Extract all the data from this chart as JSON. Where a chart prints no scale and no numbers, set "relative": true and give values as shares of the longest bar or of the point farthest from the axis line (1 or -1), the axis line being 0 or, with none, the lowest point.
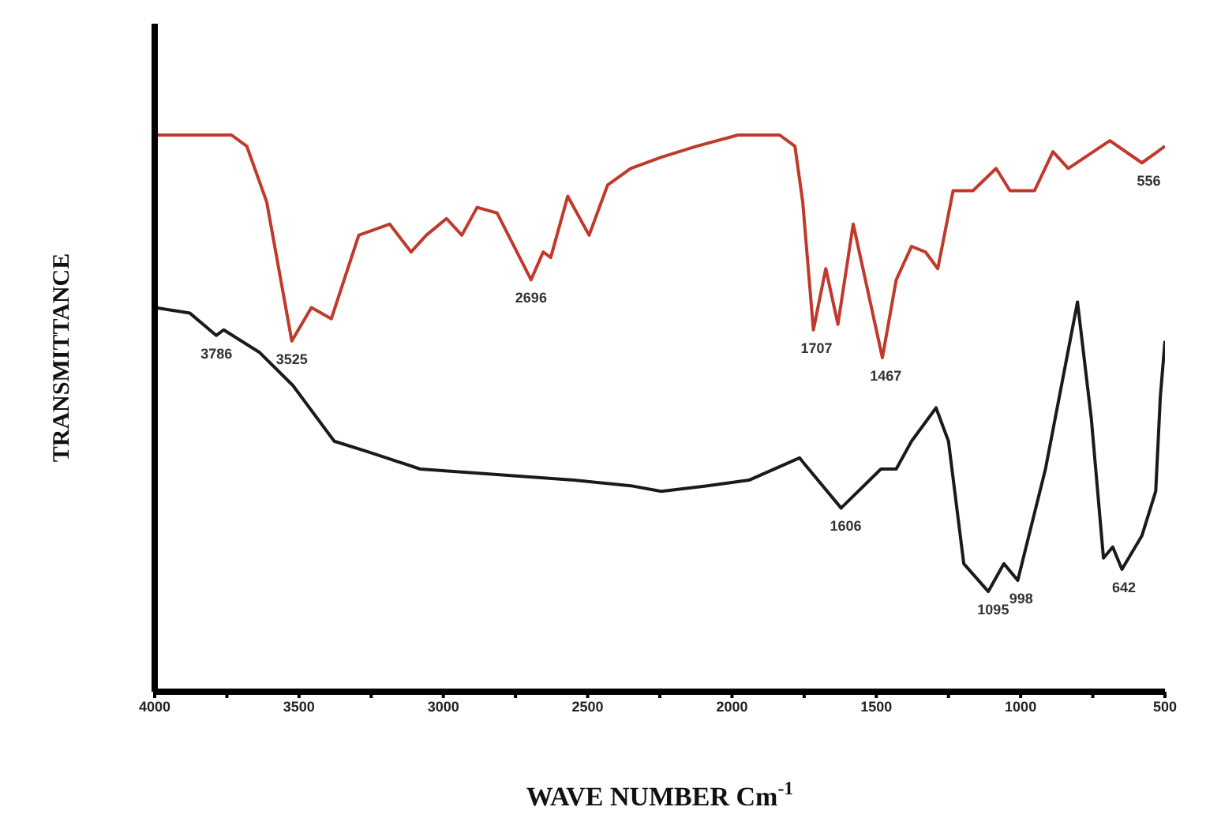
{
  "chart_data": {
    "type": "line",
    "relative": true,
    "xlabel": "WAVE NUMBER Cm$^{-1}$",
    "ylabel": "TRANSMITTANCE",
    "xlim": [
      4000,
      500
    ],
    "xticks": [
      4000,
      {
        "value": 3750,
        "label": null
      },
      3500,
      {
        "value": 3250,
        "label": null
      },
      3000,
      {
        "value": 2750,
        "label": null
      },
      2500,
      {
        "value": 2250,
        "label": null
      },
      2000,
      {
        "value": 1750,
        "label": null
      },
      1500,
      {
        "value": 1250,
        "label": null
      },
      1000,
      {
        "value": 750,
        "label": null
      },
      500
    ],
    "series": [
      {
        "color": "#c0392b",
        "x": [
          4000,
          3734,
          3681,
          3612,
          3525,
          3457,
          3388,
          3293,
          3186,
          3112,
          3059,
          2989,
          2936,
          2883,
          2814,
          2696,
          2654,
          2628,
          2569,
          2495,
          2431,
          2351,
          2245,
          2122,
          1979,
          1835,
          1782,
          1755,
          1718,
          1675,
          1633,
          1580,
          1479,
          1431,
          1378,
          1330,
          1287,
          1234,
          1165,
          1085,
          1037,
          952,
          888,
          835,
          691,
          580,
          526,
          500
        ],
        "values": [
          1.0,
          1.0,
          0.98,
          0.88,
          0.63,
          0.69,
          0.67,
          0.82,
          0.84,
          0.79,
          0.82,
          0.85,
          0.82,
          0.87,
          0.86,
          0.74,
          0.79,
          0.78,
          0.89,
          0.82,
          0.91,
          0.94,
          0.96,
          0.98,
          1.0,
          1.0,
          0.98,
          0.88,
          0.65,
          0.76,
          0.66,
          0.84,
          0.6,
          0.74,
          0.8,
          0.79,
          0.76,
          0.9,
          0.9,
          0.94,
          0.9,
          0.9,
          0.97,
          0.94,
          0.99,
          0.95,
          0.97,
          0.98
        ]
      },
      {
        "color": "#1a1a1a",
        "x": [
          4000,
          3878,
          3787,
          3761,
          3638,
          3521,
          3378,
          3255,
          3080,
          2814,
          2548,
          2351,
          2245,
          2085,
          1941,
          1766,
          1622,
          1484,
          1431,
          1378,
          1293,
          1250,
          1197,
          1112,
          1058,
          1010,
          914,
          803,
          755,
          713,
          681,
          649,
          580,
          532,
          516,
          500
        ],
        "values": [
          0.69,
          0.68,
          0.64,
          0.65,
          0.61,
          0.55,
          0.45,
          0.43,
          0.4,
          0.39,
          0.38,
          0.37,
          0.36,
          0.37,
          0.38,
          0.42,
          0.33,
          0.4,
          0.4,
          0.45,
          0.51,
          0.45,
          0.23,
          0.18,
          0.23,
          0.2,
          0.4,
          0.7,
          0.49,
          0.24,
          0.26,
          0.22,
          0.28,
          0.36,
          0.53,
          0.63
        ]
      }
    ],
    "annotations": [
      {
        "text": "3786",
        "x": 3786,
        "y": 0.64
      },
      {
        "text": "3525",
        "x": 3525,
        "y": 0.63
      },
      {
        "text": "2696",
        "x": 2696,
        "y": 0.74
      },
      {
        "text": "1707",
        "x": 1707,
        "y": 0.65
      },
      {
        "text": "1467",
        "x": 1467,
        "y": 0.6
      },
      {
        "text": "556",
        "x": 556,
        "y": 0.95
      },
      {
        "text": "1606",
        "x": 1606,
        "y": 0.33
      },
      {
        "text": "1095",
        "x": 1095,
        "y": 0.18
      },
      {
        "text": "998",
        "x": 998,
        "y": 0.2
      },
      {
        "text": "642",
        "x": 642,
        "y": 0.22
      }
    ]
  }
}
